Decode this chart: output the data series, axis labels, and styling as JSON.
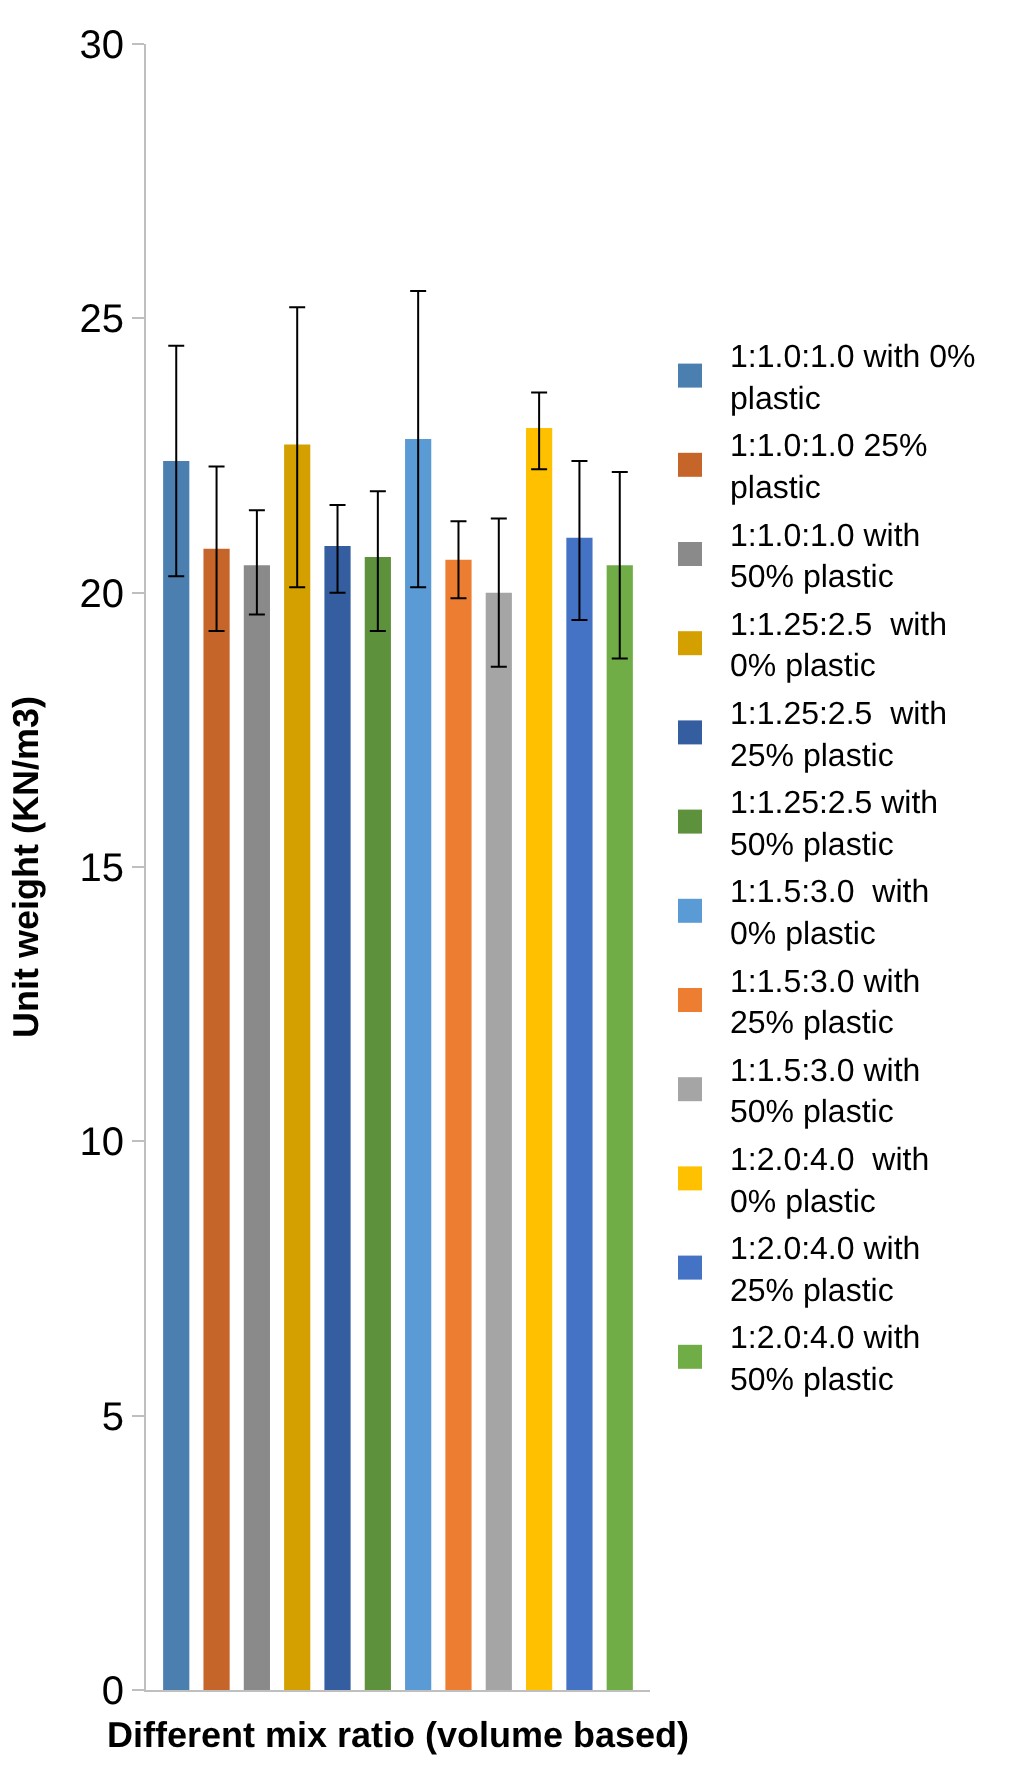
{
  "chart_data": {
    "type": "bar",
    "xlabel": "Different mix ratio (volume based)",
    "ylabel": "Unit weight (KN/m3)",
    "categories": [
      null
    ],
    "ylim": [
      0,
      30
    ],
    "yticks": [
      0,
      5,
      10,
      15,
      20,
      25,
      30
    ],
    "legend": "right",
    "series": [
      {
        "name": "1:1.0:1.0 with 0% plastic",
        "color": "#4a7fb0",
        "values": [
          22.4
        ],
        "errors": [
          [
            20.3,
            24.5
          ]
        ]
      },
      {
        "name": "1:1.0:1.0 25% plastic",
        "color": "#c5652a",
        "values": [
          20.8
        ],
        "errors": [
          [
            19.3,
            22.3
          ]
        ]
      },
      {
        "name": "1:1.0:1.0 with 50% plastic",
        "color": "#8a8a8a",
        "values": [
          20.5
        ],
        "errors": [
          [
            19.6,
            21.5
          ]
        ]
      },
      {
        "name": "1:1.25:2.5  with 0% plastic",
        "color": "#d4a000",
        "values": [
          22.7
        ],
        "errors": [
          [
            20.1,
            25.2
          ]
        ]
      },
      {
        "name": "1:1.25:2.5  with 25% plastic",
        "color": "#355ea0",
        "values": [
          20.85
        ],
        "errors": [
          [
            20.0,
            21.6
          ]
        ]
      },
      {
        "name": "1:1.25:2.5 with 50% plastic",
        "color": "#5e913b",
        "values": [
          20.65
        ],
        "errors": [
          [
            19.3,
            21.85
          ]
        ]
      },
      {
        "name": "1:1.5:3.0  with 0% plastic",
        "color": "#5b9bd5",
        "values": [
          22.8
        ],
        "errors": [
          [
            20.1,
            25.5
          ]
        ]
      },
      {
        "name": "1:1.5:3.0 with 25% plastic",
        "color": "#ed7d31",
        "values": [
          20.6
        ],
        "errors": [
          [
            19.9,
            21.3
          ]
        ]
      },
      {
        "name": "1:1.5:3.0 with 50% plastic",
        "color": "#a5a5a5",
        "values": [
          20.0
        ],
        "errors": [
          [
            18.65,
            21.35
          ]
        ]
      },
      {
        "name": "1:2.0:4.0  with 0% plastic",
        "color": "#ffc000",
        "values": [
          23.0
        ],
        "errors": [
          [
            22.25,
            23.65
          ]
        ]
      },
      {
        "name": "1:2.0:4.0 with 25% plastic",
        "color": "#4472c4",
        "values": [
          21.0
        ],
        "errors": [
          [
            19.5,
            22.4
          ]
        ]
      },
      {
        "name": "1:2.0:4.0 with 50% plastic",
        "color": "#70ad47",
        "values": [
          20.5
        ],
        "errors": [
          [
            18.8,
            22.2
          ]
        ]
      }
    ]
  }
}
